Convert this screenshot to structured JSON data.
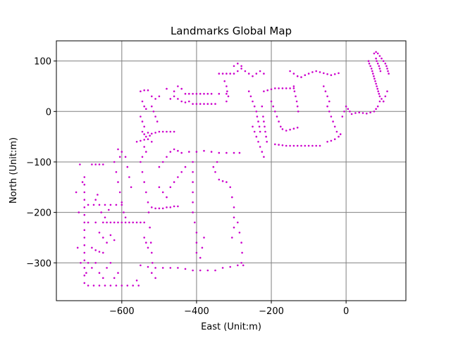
{
  "chart_data": {
    "type": "scatter",
    "title": "Landmarks Global Map",
    "xlabel": "East (Unit:m)",
    "ylabel": "North (Unit:m)",
    "xlim": [
      -775,
      160
    ],
    "ylim": [
      -375,
      140
    ],
    "xticks": [
      -600,
      -400,
      -200,
      0
    ],
    "yticks": [
      100,
      0,
      -100,
      -200,
      -300
    ],
    "grid": true,
    "marker_color": "#cc00cc",
    "grid_color": "#808080",
    "points": [
      [
        -700,
        -130
      ],
      [
        -700,
        -145
      ],
      [
        -700,
        -160
      ],
      [
        -700,
        -175
      ],
      [
        -700,
        -190
      ],
      [
        -700,
        -205
      ],
      [
        -700,
        -220
      ],
      [
        -700,
        -235
      ],
      [
        -700,
        -250
      ],
      [
        -700,
        -265
      ],
      [
        -700,
        -280
      ],
      [
        -700,
        -295
      ],
      [
        -700,
        -310
      ],
      [
        -700,
        -325
      ],
      [
        -700,
        -340
      ],
      [
        -705,
        -140
      ],
      [
        -712,
        -105
      ],
      [
        -722,
        -160
      ],
      [
        -715,
        -200
      ],
      [
        -718,
        -270
      ],
      [
        -710,
        -300
      ],
      [
        -695,
        -320
      ],
      [
        -690,
        -345
      ],
      [
        -675,
        -345
      ],
      [
        -660,
        -345
      ],
      [
        -645,
        -345
      ],
      [
        -630,
        -345
      ],
      [
        -615,
        -345
      ],
      [
        -600,
        -345
      ],
      [
        -585,
        -345
      ],
      [
        -570,
        -345
      ],
      [
        -555,
        -345
      ],
      [
        -560,
        -335
      ],
      [
        -680,
        -105
      ],
      [
        -670,
        -105
      ],
      [
        -660,
        -105
      ],
      [
        -650,
        -105
      ],
      [
        -690,
        -185
      ],
      [
        -675,
        -185
      ],
      [
        -660,
        -185
      ],
      [
        -645,
        -185
      ],
      [
        -630,
        -185
      ],
      [
        -615,
        -185
      ],
      [
        -600,
        -185
      ],
      [
        -690,
        -220
      ],
      [
        -670,
        -220
      ],
      [
        -650,
        -220
      ],
      [
        -640,
        -220
      ],
      [
        -630,
        -220
      ],
      [
        -620,
        -220
      ],
      [
        -610,
        -220
      ],
      [
        -600,
        -220
      ],
      [
        -590,
        -220
      ],
      [
        -580,
        -220
      ],
      [
        -570,
        -220
      ],
      [
        -560,
        -220
      ],
      [
        -550,
        -220
      ],
      [
        -540,
        -220
      ],
      [
        -680,
        -270
      ],
      [
        -670,
        -275
      ],
      [
        -660,
        -278
      ],
      [
        -650,
        -280
      ],
      [
        -690,
        -300
      ],
      [
        -680,
        -310
      ],
      [
        -670,
        -300
      ],
      [
        -660,
        -320
      ],
      [
        -650,
        -330
      ],
      [
        -640,
        -310
      ],
      [
        -630,
        -300
      ],
      [
        -620,
        -330
      ],
      [
        -610,
        -320
      ],
      [
        -660,
        -240
      ],
      [
        -650,
        -250
      ],
      [
        -640,
        -260
      ],
      [
        -630,
        -245
      ],
      [
        -620,
        -255
      ],
      [
        -670,
        -175
      ],
      [
        -665,
        -165
      ],
      [
        -655,
        -200
      ],
      [
        -645,
        -210
      ],
      [
        -635,
        -195
      ],
      [
        -620,
        -100
      ],
      [
        -615,
        -120
      ],
      [
        -610,
        -140
      ],
      [
        -605,
        -160
      ],
      [
        -600,
        -180
      ],
      [
        -595,
        -200
      ],
      [
        -590,
        -210
      ],
      [
        -600,
        -80
      ],
      [
        -605,
        -90
      ],
      [
        -610,
        -75
      ],
      [
        -590,
        -90
      ],
      [
        -585,
        -110
      ],
      [
        -580,
        -130
      ],
      [
        -575,
        -150
      ],
      [
        -560,
        -60
      ],
      [
        -550,
        -58
      ],
      [
        -540,
        -56
      ],
      [
        -530,
        -55
      ],
      [
        -520,
        -60
      ],
      [
        -540,
        -70
      ],
      [
        -535,
        -80
      ],
      [
        -545,
        -90
      ],
      [
        -545,
        -40
      ],
      [
        -540,
        -45
      ],
      [
        -535,
        -50
      ],
      [
        -530,
        -42
      ],
      [
        -525,
        -48
      ],
      [
        -520,
        -44
      ],
      [
        -510,
        -42
      ],
      [
        -500,
        -40
      ],
      [
        -490,
        -40
      ],
      [
        -480,
        -40
      ],
      [
        -470,
        -40
      ],
      [
        -460,
        -40
      ],
      [
        -550,
        -100
      ],
      [
        -545,
        -120
      ],
      [
        -540,
        -140
      ],
      [
        -535,
        -160
      ],
      [
        -530,
        -180
      ],
      [
        -528,
        -200
      ],
      [
        -525,
        -230
      ],
      [
        -522,
        -260
      ],
      [
        -520,
        -280
      ],
      [
        -518,
        -300
      ],
      [
        -540,
        -250
      ],
      [
        -535,
        -260
      ],
      [
        -530,
        -270
      ],
      [
        -520,
        -320
      ],
      [
        -510,
        -330
      ],
      [
        -550,
        -305
      ],
      [
        -530,
        -308
      ],
      [
        -510,
        -310
      ],
      [
        -490,
        -310
      ],
      [
        -470,
        -310
      ],
      [
        -450,
        -310
      ],
      [
        -430,
        -312
      ],
      [
        -410,
        -315
      ],
      [
        -390,
        -315
      ],
      [
        -370,
        -315
      ],
      [
        -350,
        -315
      ],
      [
        -330,
        -310
      ],
      [
        -310,
        -308
      ],
      [
        -290,
        -305
      ],
      [
        -275,
        -305
      ],
      [
        -520,
        -190
      ],
      [
        -510,
        -192
      ],
      [
        -500,
        -192
      ],
      [
        -490,
        -192
      ],
      [
        -480,
        -190
      ],
      [
        -470,
        -190
      ],
      [
        -460,
        -188
      ],
      [
        -450,
        -188
      ],
      [
        -500,
        -150
      ],
      [
        -490,
        -160
      ],
      [
        -480,
        -170
      ],
      [
        -470,
        -150
      ],
      [
        -460,
        -140
      ],
      [
        -450,
        -130
      ],
      [
        -440,
        -120
      ],
      [
        -430,
        -110
      ],
      [
        -500,
        -110
      ],
      [
        -490,
        -100
      ],
      [
        -480,
        -90
      ],
      [
        -470,
        -80
      ],
      [
        -460,
        -75
      ],
      [
        -450,
        -78
      ],
      [
        -440,
        -82
      ],
      [
        -420,
        -80
      ],
      [
        -400,
        -80
      ],
      [
        -380,
        -78
      ],
      [
        -360,
        -80
      ],
      [
        -340,
        -82
      ],
      [
        -320,
        -82
      ],
      [
        -300,
        -82
      ],
      [
        -285,
        -82
      ],
      [
        -410,
        -100
      ],
      [
        -410,
        -120
      ],
      [
        -410,
        -140
      ],
      [
        -410,
        -160
      ],
      [
        -410,
        -180
      ],
      [
        -410,
        -200
      ],
      [
        -405,
        -220
      ],
      [
        -400,
        -240
      ],
      [
        -400,
        -260
      ],
      [
        -400,
        -280
      ],
      [
        -380,
        -250
      ],
      [
        -385,
        -270
      ],
      [
        -390,
        -290
      ],
      [
        -350,
        -120
      ],
      [
        -340,
        -135
      ],
      [
        -330,
        -138
      ],
      [
        -320,
        -140
      ],
      [
        -355,
        -110
      ],
      [
        -345,
        -100
      ],
      [
        -310,
        -150
      ],
      [
        -305,
        -170
      ],
      [
        -300,
        -190
      ],
      [
        -300,
        -210
      ],
      [
        -300,
        -230
      ],
      [
        -305,
        -250
      ],
      [
        -290,
        -220
      ],
      [
        -285,
        -240
      ],
      [
        -280,
        -260
      ],
      [
        -278,
        -280
      ],
      [
        -280,
        -300
      ],
      [
        -550,
        40
      ],
      [
        -540,
        42
      ],
      [
        -530,
        42
      ],
      [
        -545,
        20
      ],
      [
        -540,
        10
      ],
      [
        -535,
        5
      ],
      [
        -550,
        -10
      ],
      [
        -545,
        -20
      ],
      [
        -540,
        -30
      ],
      [
        -520,
        30
      ],
      [
        -510,
        25
      ],
      [
        -500,
        30
      ],
      [
        -520,
        10
      ],
      [
        -515,
        0
      ],
      [
        -510,
        -10
      ],
      [
        -505,
        -20
      ],
      [
        -470,
        25
      ],
      [
        -460,
        30
      ],
      [
        -450,
        25
      ],
      [
        -440,
        20
      ],
      [
        -430,
        18
      ],
      [
        -420,
        20
      ],
      [
        -410,
        15
      ],
      [
        -400,
        15
      ],
      [
        -390,
        15
      ],
      [
        -380,
        15
      ],
      [
        -370,
        15
      ],
      [
        -360,
        15
      ],
      [
        -350,
        15
      ],
      [
        -430,
        35
      ],
      [
        -420,
        35
      ],
      [
        -410,
        35
      ],
      [
        -400,
        35
      ],
      [
        -390,
        35
      ],
      [
        -380,
        35
      ],
      [
        -370,
        35
      ],
      [
        -360,
        35
      ],
      [
        -340,
        35
      ],
      [
        -320,
        35
      ],
      [
        -450,
        50
      ],
      [
        -440,
        45
      ],
      [
        -480,
        45
      ],
      [
        -460,
        40
      ],
      [
        -340,
        75
      ],
      [
        -330,
        75
      ],
      [
        -320,
        75
      ],
      [
        -310,
        75
      ],
      [
        -300,
        75
      ],
      [
        -290,
        80
      ],
      [
        -280,
        85
      ],
      [
        -270,
        80
      ],
      [
        -260,
        75
      ],
      [
        -250,
        70
      ],
      [
        -240,
        75
      ],
      [
        -230,
        80
      ],
      [
        -220,
        75
      ],
      [
        -325,
        60
      ],
      [
        -320,
        50
      ],
      [
        -318,
        40
      ],
      [
        -315,
        30
      ],
      [
        -320,
        20
      ],
      [
        -300,
        90
      ],
      [
        -290,
        95
      ],
      [
        -280,
        90
      ],
      [
        -260,
        40
      ],
      [
        -255,
        30
      ],
      [
        -250,
        20
      ],
      [
        -245,
        10
      ],
      [
        -240,
        0
      ],
      [
        -238,
        -10
      ],
      [
        -235,
        -20
      ],
      [
        -232,
        -30
      ],
      [
        -230,
        -40
      ],
      [
        -250,
        -30
      ],
      [
        -245,
        -40
      ],
      [
        -240,
        -50
      ],
      [
        -235,
        -60
      ],
      [
        -230,
        -70
      ],
      [
        -225,
        -80
      ],
      [
        -220,
        -90
      ],
      [
        -220,
        40
      ],
      [
        -210,
        42
      ],
      [
        -200,
        44
      ],
      [
        -190,
        46
      ],
      [
        -180,
        46
      ],
      [
        -170,
        46
      ],
      [
        -160,
        46
      ],
      [
        -150,
        46
      ],
      [
        -140,
        46
      ],
      [
        -225,
        10
      ],
      [
        -222,
        -10
      ],
      [
        -220,
        -20
      ],
      [
        -218,
        -30
      ],
      [
        -216,
        -40
      ],
      [
        -214,
        -50
      ],
      [
        -212,
        -60
      ],
      [
        -200,
        20
      ],
      [
        -195,
        10
      ],
      [
        -190,
        0
      ],
      [
        -185,
        -10
      ],
      [
        -180,
        -20
      ],
      [
        -175,
        -30
      ],
      [
        -170,
        -35
      ],
      [
        -160,
        -38
      ],
      [
        -150,
        -36
      ],
      [
        -140,
        -34
      ],
      [
        -130,
        -32
      ],
      [
        -150,
        80
      ],
      [
        -140,
        75
      ],
      [
        -130,
        70
      ],
      [
        -120,
        68
      ],
      [
        -110,
        72
      ],
      [
        -100,
        75
      ],
      [
        -90,
        78
      ],
      [
        -80,
        80
      ],
      [
        -70,
        78
      ],
      [
        -60,
        76
      ],
      [
        -50,
        74
      ],
      [
        -40,
        72
      ],
      [
        -30,
        74
      ],
      [
        -20,
        76
      ],
      [
        -140,
        50
      ],
      [
        -138,
        40
      ],
      [
        -135,
        30
      ],
      [
        -132,
        20
      ],
      [
        -130,
        10
      ],
      [
        -128,
        0
      ],
      [
        -190,
        -65
      ],
      [
        -180,
        -66
      ],
      [
        -170,
        -67
      ],
      [
        -160,
        -68
      ],
      [
        -150,
        -68
      ],
      [
        -140,
        -68
      ],
      [
        -130,
        -68
      ],
      [
        -120,
        -68
      ],
      [
        -110,
        -68
      ],
      [
        -100,
        -68
      ],
      [
        -90,
        -68
      ],
      [
        -80,
        -68
      ],
      [
        -70,
        -68
      ],
      [
        -50,
        -60
      ],
      [
        -40,
        -58
      ],
      [
        -30,
        -55
      ],
      [
        -20,
        -50
      ],
      [
        -15,
        -45
      ],
      [
        -60,
        50
      ],
      [
        -55,
        40
      ],
      [
        -50,
        30
      ],
      [
        -45,
        20
      ],
      [
        -50,
        10
      ],
      [
        -45,
        0
      ],
      [
        -40,
        -10
      ],
      [
        -35,
        -20
      ],
      [
        -30,
        -30
      ],
      [
        -25,
        -40
      ],
      [
        -10,
        -10
      ],
      [
        -5,
        0
      ],
      [
        0,
        10
      ],
      [
        5,
        5
      ],
      [
        10,
        0
      ],
      [
        15,
        -5
      ],
      [
        25,
        -3
      ],
      [
        35,
        -2
      ],
      [
        45,
        -3
      ],
      [
        55,
        -4
      ],
      [
        65,
        -2
      ],
      [
        75,
        0
      ],
      [
        80,
        5
      ],
      [
        85,
        10
      ],
      [
        90,
        20
      ],
      [
        60,
        100
      ],
      [
        62,
        95
      ],
      [
        65,
        90
      ],
      [
        68,
        85
      ],
      [
        70,
        80
      ],
      [
        72,
        75
      ],
      [
        74,
        70
      ],
      [
        76,
        65
      ],
      [
        78,
        60
      ],
      [
        80,
        55
      ],
      [
        82,
        50
      ],
      [
        84,
        45
      ],
      [
        86,
        40
      ],
      [
        88,
        35
      ],
      [
        90,
        30
      ],
      [
        95,
        25
      ],
      [
        100,
        20
      ],
      [
        75,
        115
      ],
      [
        80,
        118
      ],
      [
        85,
        115
      ],
      [
        90,
        110
      ],
      [
        95,
        105
      ],
      [
        100,
        100
      ],
      [
        105,
        95
      ],
      [
        108,
        90
      ],
      [
        110,
        85
      ],
      [
        112,
        80
      ],
      [
        114,
        75
      ],
      [
        80,
        105
      ],
      [
        82,
        100
      ],
      [
        85,
        95
      ],
      [
        88,
        90
      ],
      [
        90,
        85
      ],
      [
        92,
        80
      ],
      [
        110,
        40
      ],
      [
        105,
        30
      ],
      [
        100,
        20
      ]
    ]
  }
}
